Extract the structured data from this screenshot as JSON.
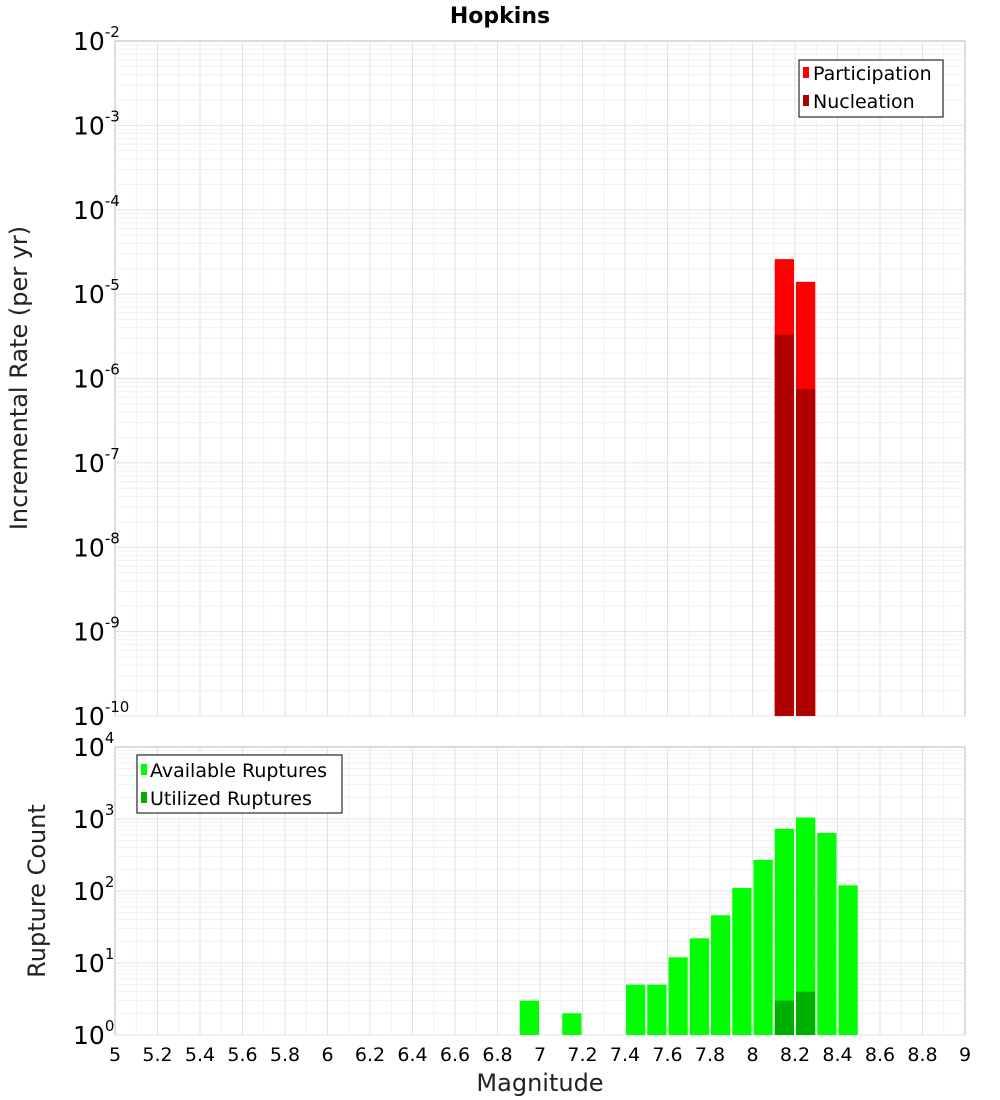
{
  "chart_data": [
    {
      "type": "bar",
      "scale": "log",
      "title": "Hopkins",
      "xlabel": "Magnitude",
      "ylabel": "Incremental Rate (per yr)",
      "xlim": [
        5,
        9
      ],
      "ylim_exponents": [
        -10,
        -2
      ],
      "ytick_base": "10",
      "ytick_exponents": [
        "-10",
        "-9",
        "-8",
        "-7",
        "-6",
        "-5",
        "-4",
        "-3",
        "-2"
      ],
      "legend": {
        "position": "top-right",
        "entries": [
          "Participation",
          "Nucleation"
        ]
      },
      "bar_width": 0.1,
      "series": [
        {
          "name": "Participation",
          "color": "#ff0000",
          "points": [
            {
              "x": 8.15,
              "y": 2.6e-05
            },
            {
              "x": 8.25,
              "y": 1.4e-05
            }
          ]
        },
        {
          "name": "Nucleation",
          "color": "#b00000",
          "points": [
            {
              "x": 8.15,
              "y": 3.3e-06
            },
            {
              "x": 8.25,
              "y": 7.5e-07
            }
          ]
        }
      ]
    },
    {
      "type": "bar",
      "scale": "log",
      "title": "",
      "xlabel": "Magnitude",
      "ylabel": "Rupture Count",
      "xlim": [
        5,
        9
      ],
      "ylim_exponents": [
        0,
        4
      ],
      "ytick_base": "10",
      "ytick_exponents": [
        "0",
        "1",
        "2",
        "3",
        "4"
      ],
      "xticks": [
        "5",
        "5.2",
        "5.4",
        "5.6",
        "5.8",
        "6",
        "6.2",
        "6.4",
        "6.6",
        "6.8",
        "7",
        "7.2",
        "7.4",
        "7.6",
        "7.8",
        "8",
        "8.2",
        "8.4",
        "8.6",
        "8.8",
        "9"
      ],
      "legend": {
        "position": "top-left",
        "entries": [
          "Available Ruptures",
          "Utilized Ruptures"
        ]
      },
      "bar_width": 0.1,
      "series": [
        {
          "name": "Available Ruptures",
          "color": "#00ff00",
          "points": [
            {
              "x": 6.95,
              "y": 3
            },
            {
              "x": 7.15,
              "y": 2
            },
            {
              "x": 7.25,
              "y": 1
            },
            {
              "x": 7.35,
              "y": 1
            },
            {
              "x": 7.45,
              "y": 5
            },
            {
              "x": 7.55,
              "y": 5
            },
            {
              "x": 7.65,
              "y": 12
            },
            {
              "x": 7.75,
              "y": 22
            },
            {
              "x": 7.85,
              "y": 46
            },
            {
              "x": 7.95,
              "y": 110
            },
            {
              "x": 8.05,
              "y": 270
            },
            {
              "x": 8.15,
              "y": 730
            },
            {
              "x": 8.25,
              "y": 1050
            },
            {
              "x": 8.35,
              "y": 640
            },
            {
              "x": 8.45,
              "y": 120
            }
          ]
        },
        {
          "name": "Utilized Ruptures",
          "color": "#00b000",
          "points": [
            {
              "x": 8.15,
              "y": 3
            },
            {
              "x": 8.25,
              "y": 4
            }
          ]
        }
      ]
    }
  ]
}
